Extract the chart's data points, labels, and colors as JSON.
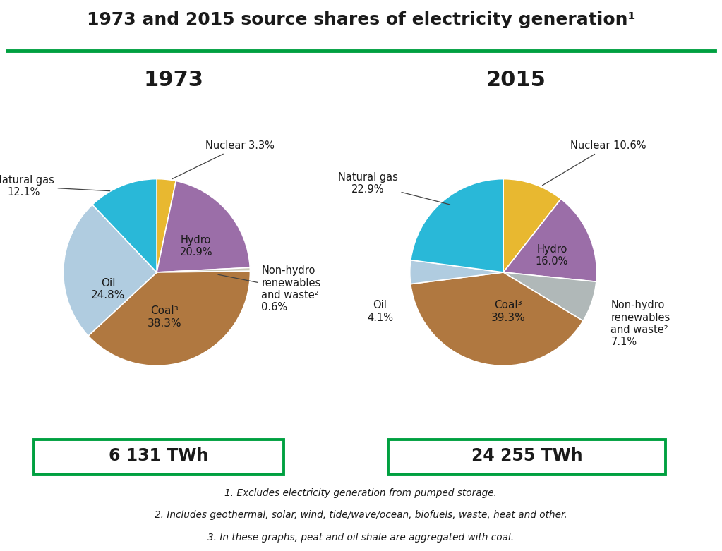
{
  "title": "1973 and 2015 source shares of electricity generation¹",
  "title_fontsize": 18,
  "year1": "1973",
  "year2": "2015",
  "total1": "6 131 TWh",
  "total2": "24 255 TWh",
  "pie1_values": [
    3.3,
    20.9,
    0.6,
    38.3,
    24.8,
    12.1
  ],
  "pie1_colors": [
    "#e8b830",
    "#9b6ea8",
    "#c8c8b8",
    "#b07840",
    "#b0cce0",
    "#29b8d8"
  ],
  "pie2_values": [
    10.6,
    16.0,
    7.1,
    39.3,
    4.1,
    22.9
  ],
  "pie2_colors": [
    "#e8b830",
    "#9b6ea8",
    "#b0b8b8",
    "#b07840",
    "#b0cce0",
    "#29b8d8"
  ],
  "footnotes": [
    "1. Excludes electricity generation from pumped storage.",
    "2. Includes geothermal, solar, wind, tide/wave/ocean, biofuels, waste, heat and other.",
    "3. In these graphs, peat and oil shale are aggregated with coal."
  ],
  "green_line_color": "#00a040",
  "box_color": "#00a040",
  "background_color": "#ffffff"
}
